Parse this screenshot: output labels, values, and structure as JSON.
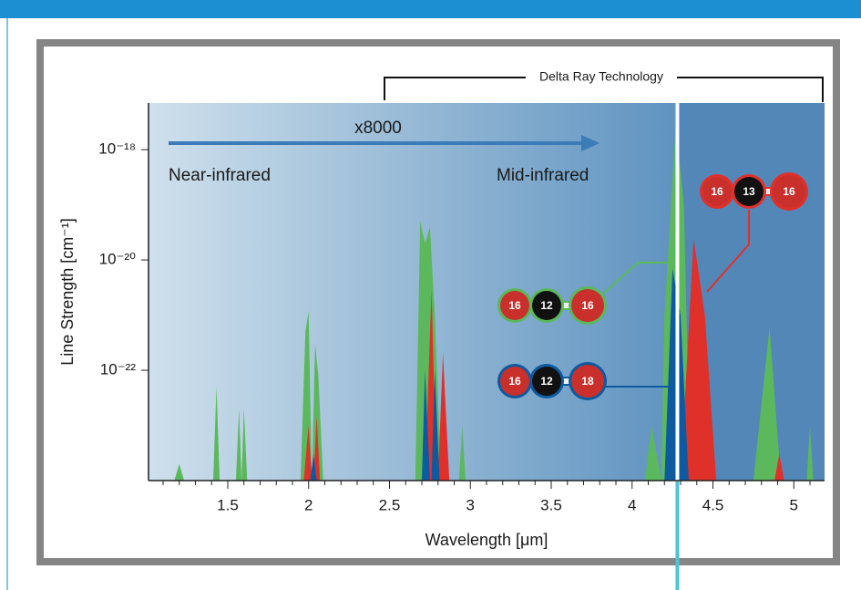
{
  "chart_data": {
    "type": "area",
    "log_y": true,
    "xlabel": "Wavelength [μm]",
    "ylabel": "Line Strength [cm⁻¹]",
    "xlim": [
      1.01,
      5.19
    ],
    "ylim": [
      1e-24,
      7e-18
    ],
    "xticks": [
      1.5,
      2.0,
      2.5,
      3.0,
      3.5,
      4.0,
      4.5,
      5.0
    ],
    "xminorticks": [
      1.1,
      1.2,
      1.3,
      1.4,
      1.6,
      1.7,
      1.8,
      1.9,
      2.1,
      2.2,
      2.3,
      2.4,
      2.6,
      2.7,
      2.8,
      2.9,
      3.1,
      3.2,
      3.3,
      3.4,
      3.6,
      3.7,
      3.8,
      3.9,
      4.1,
      4.2,
      4.3,
      4.4,
      4.6,
      4.7,
      4.8,
      4.9,
      5.1
    ],
    "yticks": [
      {
        "value": 1e-18,
        "label": "10⁻¹⁸"
      },
      {
        "value": 1e-20,
        "label": "10⁻²⁰"
      },
      {
        "value": 1e-22,
        "label": "10⁻²²"
      }
    ],
    "marker_x": 4.28,
    "annotations": {
      "factor": "x8000",
      "left_region": "Near-infrared",
      "right_region": "Mid-infrared",
      "bracket": "Delta Ray Technology"
    },
    "series": [
      {
        "color": "#5cb85c",
        "molecule": [
          "16",
          "12",
          "16"
        ],
        "x": [
          1.17,
          1.2,
          1.23,
          1.41,
          1.43,
          1.45,
          1.55,
          1.57,
          1.585,
          1.6,
          1.62,
          1.95,
          1.98,
          2.0,
          2.02,
          2.04,
          2.06,
          2.09,
          2.66,
          2.69,
          2.72,
          2.75,
          2.78,
          2.82,
          2.93,
          2.95,
          2.97,
          4.08,
          4.12,
          4.18,
          4.2,
          4.27,
          4.32,
          4.36,
          4.75,
          4.85,
          4.92,
          5.08,
          5.1,
          5.12
        ],
        "values": [
          1e-24,
          2e-24,
          1e-24,
          1e-24,
          5e-23,
          1e-24,
          1e-24,
          2e-23,
          1e-24,
          2e-23,
          1e-24,
          1e-24,
          5e-22,
          1.2e-21,
          1e-24,
          3e-22,
          8e-23,
          1e-24,
          1e-24,
          5e-20,
          2e-20,
          4e-20,
          1e-21,
          1e-24,
          1e-24,
          1e-23,
          1e-24,
          1e-24,
          1e-23,
          1e-24,
          1e-21,
          3e-18,
          1e-19,
          1e-24,
          1e-24,
          6e-22,
          1e-24,
          1e-24,
          1e-23,
          1e-24
        ]
      },
      {
        "color": "#e0302a",
        "molecule": [
          "16",
          "13",
          "16"
        ],
        "x": [
          1.97,
          2.0,
          2.02,
          2.03,
          2.05,
          2.07,
          2.72,
          2.76,
          2.79,
          2.8,
          2.83,
          2.87,
          4.3,
          4.38,
          4.45,
          4.52,
          4.88,
          4.91,
          4.94
        ],
        "values": [
          1e-24,
          1e-23,
          1e-24,
          1e-24,
          1.5e-23,
          1e-24,
          1e-24,
          3e-21,
          1e-24,
          1e-24,
          2e-22,
          1e-24,
          1e-24,
          2.5e-20,
          1e-21,
          1e-24,
          1e-24,
          3e-24,
          1e-24
        ]
      },
      {
        "color": "#0e5aa0",
        "molecule": [
          "16",
          "12",
          "18"
        ],
        "x": [
          2.01,
          2.03,
          2.05,
          2.7,
          2.72,
          2.75,
          2.76,
          2.78,
          2.81,
          4.2,
          4.25,
          4.3,
          4.35
        ],
        "values": [
          1e-24,
          3e-24,
          1e-24,
          1e-24,
          1e-22,
          1e-24,
          1e-24,
          1e-22,
          1e-24,
          1e-24,
          7e-21,
          1e-21,
          1e-24
        ]
      }
    ]
  }
}
